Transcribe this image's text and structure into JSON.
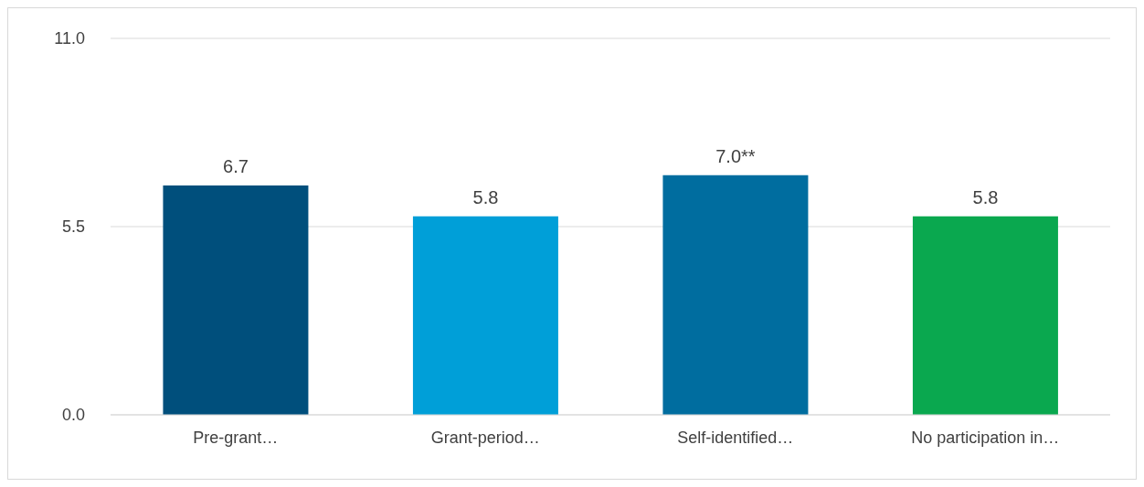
{
  "chart_data": {
    "type": "bar",
    "categories": [
      "Pre-grant…",
      "Grant-period…",
      "Self-identified…",
      "No participation in…"
    ],
    "values": [
      6.7,
      5.8,
      7.0,
      5.8
    ],
    "colors": [
      "#004f7c",
      "#009fd8",
      "#006d9f",
      "#0aa84f"
    ],
    "value_labels": [
      "6.7",
      "5.8",
      "7.0**",
      "5.8"
    ],
    "ylim": [
      0,
      11
    ],
    "yticks": [
      {
        "value": 0,
        "label": "0.0"
      },
      {
        "value": 5.5,
        "label": "5.5"
      },
      {
        "value": 11,
        "label": "11.0"
      }
    ],
    "grid": "y"
  }
}
